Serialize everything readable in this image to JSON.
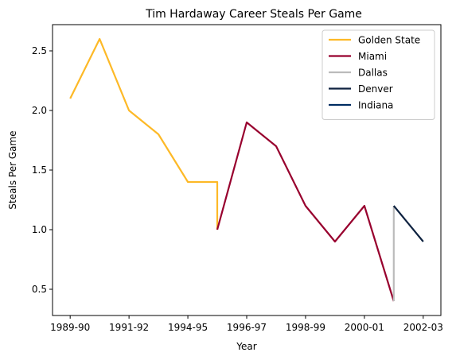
{
  "chart_data": {
    "type": "line",
    "title": "Tim Hardaway Career Steals Per Game",
    "xlabel": "Year",
    "ylabel": "Steals Per Game",
    "x_tick_labels": [
      "1989-90",
      "1991-92",
      "1994-95",
      "1996-97",
      "1998-99",
      "2000-01",
      "2002-03"
    ],
    "x_tick_positions": [
      0,
      2,
      4,
      6,
      8,
      10,
      12
    ],
    "x_range": [
      -0.6,
      12.6
    ],
    "y_ticks": [
      0.5,
      1.0,
      1.5,
      2.0,
      2.5
    ],
    "y_tick_labels": [
      "0.5",
      "1.0",
      "1.5",
      "2.0",
      "2.5"
    ],
    "ylim": [
      0.28,
      2.72
    ],
    "grid": false,
    "legend_position": "top-right",
    "series": [
      {
        "name": "Golden State",
        "color": "#fdb927",
        "x": [
          0,
          1,
          2,
          3,
          4,
          5,
          5
        ],
        "y": [
          2.1,
          2.6,
          2.0,
          1.8,
          1.4,
          1.4,
          1.0
        ]
      },
      {
        "name": "Miami",
        "color": "#98002e",
        "x": [
          5,
          6,
          7,
          8,
          9,
          10,
          11
        ],
        "y": [
          1.0,
          1.9,
          1.7,
          1.2,
          0.9,
          1.2,
          0.4
        ]
      },
      {
        "name": "Dallas",
        "color": "#bbbbbb",
        "x": [
          11,
          11
        ],
        "y": [
          0.4,
          1.2
        ]
      },
      {
        "name": "Denver",
        "color": "#0e2240",
        "x": [
          11,
          12
        ],
        "y": [
          1.2,
          0.9
        ]
      },
      {
        "name": "Indiana",
        "color": "#002d62",
        "x": [],
        "y": []
      }
    ]
  }
}
